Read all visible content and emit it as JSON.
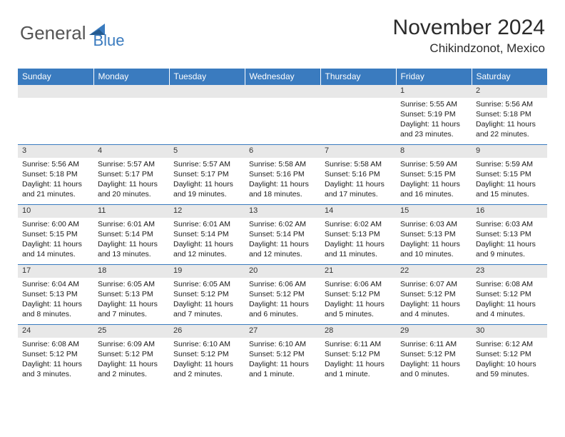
{
  "brand": {
    "first": "General",
    "second": "Blue"
  },
  "title": "November 2024",
  "location": "Chikindzonot, Mexico",
  "weekdays": [
    "Sunday",
    "Monday",
    "Tuesday",
    "Wednesday",
    "Thursday",
    "Friday",
    "Saturday"
  ],
  "colors": {
    "header_bg": "#3a7bbf",
    "daynum_bg": "#e8e8e8",
    "border": "#3a7bbf",
    "text": "#1a1a1a",
    "background": "#ffffff"
  },
  "weeks": [
    [
      {
        "n": "",
        "sunrise": "",
        "sunset": "",
        "daylight": ""
      },
      {
        "n": "",
        "sunrise": "",
        "sunset": "",
        "daylight": ""
      },
      {
        "n": "",
        "sunrise": "",
        "sunset": "",
        "daylight": ""
      },
      {
        "n": "",
        "sunrise": "",
        "sunset": "",
        "daylight": ""
      },
      {
        "n": "",
        "sunrise": "",
        "sunset": "",
        "daylight": ""
      },
      {
        "n": "1",
        "sunrise": "Sunrise: 5:55 AM",
        "sunset": "Sunset: 5:19 PM",
        "daylight": "Daylight: 11 hours and 23 minutes."
      },
      {
        "n": "2",
        "sunrise": "Sunrise: 5:56 AM",
        "sunset": "Sunset: 5:18 PM",
        "daylight": "Daylight: 11 hours and 22 minutes."
      }
    ],
    [
      {
        "n": "3",
        "sunrise": "Sunrise: 5:56 AM",
        "sunset": "Sunset: 5:18 PM",
        "daylight": "Daylight: 11 hours and 21 minutes."
      },
      {
        "n": "4",
        "sunrise": "Sunrise: 5:57 AM",
        "sunset": "Sunset: 5:17 PM",
        "daylight": "Daylight: 11 hours and 20 minutes."
      },
      {
        "n": "5",
        "sunrise": "Sunrise: 5:57 AM",
        "sunset": "Sunset: 5:17 PM",
        "daylight": "Daylight: 11 hours and 19 minutes."
      },
      {
        "n": "6",
        "sunrise": "Sunrise: 5:58 AM",
        "sunset": "Sunset: 5:16 PM",
        "daylight": "Daylight: 11 hours and 18 minutes."
      },
      {
        "n": "7",
        "sunrise": "Sunrise: 5:58 AM",
        "sunset": "Sunset: 5:16 PM",
        "daylight": "Daylight: 11 hours and 17 minutes."
      },
      {
        "n": "8",
        "sunrise": "Sunrise: 5:59 AM",
        "sunset": "Sunset: 5:15 PM",
        "daylight": "Daylight: 11 hours and 16 minutes."
      },
      {
        "n": "9",
        "sunrise": "Sunrise: 5:59 AM",
        "sunset": "Sunset: 5:15 PM",
        "daylight": "Daylight: 11 hours and 15 minutes."
      }
    ],
    [
      {
        "n": "10",
        "sunrise": "Sunrise: 6:00 AM",
        "sunset": "Sunset: 5:15 PM",
        "daylight": "Daylight: 11 hours and 14 minutes."
      },
      {
        "n": "11",
        "sunrise": "Sunrise: 6:01 AM",
        "sunset": "Sunset: 5:14 PM",
        "daylight": "Daylight: 11 hours and 13 minutes."
      },
      {
        "n": "12",
        "sunrise": "Sunrise: 6:01 AM",
        "sunset": "Sunset: 5:14 PM",
        "daylight": "Daylight: 11 hours and 12 minutes."
      },
      {
        "n": "13",
        "sunrise": "Sunrise: 6:02 AM",
        "sunset": "Sunset: 5:14 PM",
        "daylight": "Daylight: 11 hours and 12 minutes."
      },
      {
        "n": "14",
        "sunrise": "Sunrise: 6:02 AM",
        "sunset": "Sunset: 5:13 PM",
        "daylight": "Daylight: 11 hours and 11 minutes."
      },
      {
        "n": "15",
        "sunrise": "Sunrise: 6:03 AM",
        "sunset": "Sunset: 5:13 PM",
        "daylight": "Daylight: 11 hours and 10 minutes."
      },
      {
        "n": "16",
        "sunrise": "Sunrise: 6:03 AM",
        "sunset": "Sunset: 5:13 PM",
        "daylight": "Daylight: 11 hours and 9 minutes."
      }
    ],
    [
      {
        "n": "17",
        "sunrise": "Sunrise: 6:04 AM",
        "sunset": "Sunset: 5:13 PM",
        "daylight": "Daylight: 11 hours and 8 minutes."
      },
      {
        "n": "18",
        "sunrise": "Sunrise: 6:05 AM",
        "sunset": "Sunset: 5:13 PM",
        "daylight": "Daylight: 11 hours and 7 minutes."
      },
      {
        "n": "19",
        "sunrise": "Sunrise: 6:05 AM",
        "sunset": "Sunset: 5:12 PM",
        "daylight": "Daylight: 11 hours and 7 minutes."
      },
      {
        "n": "20",
        "sunrise": "Sunrise: 6:06 AM",
        "sunset": "Sunset: 5:12 PM",
        "daylight": "Daylight: 11 hours and 6 minutes."
      },
      {
        "n": "21",
        "sunrise": "Sunrise: 6:06 AM",
        "sunset": "Sunset: 5:12 PM",
        "daylight": "Daylight: 11 hours and 5 minutes."
      },
      {
        "n": "22",
        "sunrise": "Sunrise: 6:07 AM",
        "sunset": "Sunset: 5:12 PM",
        "daylight": "Daylight: 11 hours and 4 minutes."
      },
      {
        "n": "23",
        "sunrise": "Sunrise: 6:08 AM",
        "sunset": "Sunset: 5:12 PM",
        "daylight": "Daylight: 11 hours and 4 minutes."
      }
    ],
    [
      {
        "n": "24",
        "sunrise": "Sunrise: 6:08 AM",
        "sunset": "Sunset: 5:12 PM",
        "daylight": "Daylight: 11 hours and 3 minutes."
      },
      {
        "n": "25",
        "sunrise": "Sunrise: 6:09 AM",
        "sunset": "Sunset: 5:12 PM",
        "daylight": "Daylight: 11 hours and 2 minutes."
      },
      {
        "n": "26",
        "sunrise": "Sunrise: 6:10 AM",
        "sunset": "Sunset: 5:12 PM",
        "daylight": "Daylight: 11 hours and 2 minutes."
      },
      {
        "n": "27",
        "sunrise": "Sunrise: 6:10 AM",
        "sunset": "Sunset: 5:12 PM",
        "daylight": "Daylight: 11 hours and 1 minute."
      },
      {
        "n": "28",
        "sunrise": "Sunrise: 6:11 AM",
        "sunset": "Sunset: 5:12 PM",
        "daylight": "Daylight: 11 hours and 1 minute."
      },
      {
        "n": "29",
        "sunrise": "Sunrise: 6:11 AM",
        "sunset": "Sunset: 5:12 PM",
        "daylight": "Daylight: 11 hours and 0 minutes."
      },
      {
        "n": "30",
        "sunrise": "Sunrise: 6:12 AM",
        "sunset": "Sunset: 5:12 PM",
        "daylight": "Daylight: 10 hours and 59 minutes."
      }
    ]
  ]
}
